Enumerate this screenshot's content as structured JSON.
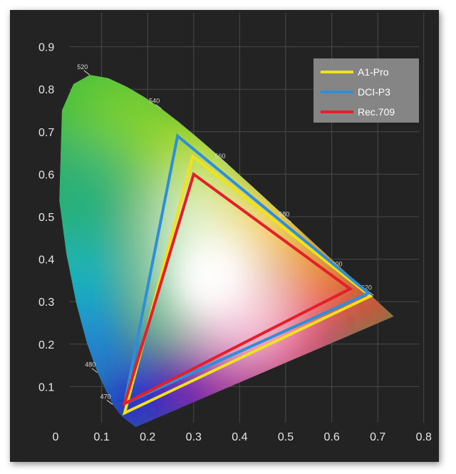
{
  "chart_data": {
    "type": "scatter",
    "title": "",
    "xlabel": "",
    "ylabel": "",
    "xlim": [
      0,
      0.8
    ],
    "ylim": [
      0,
      0.9
    ],
    "x_ticks": [
      "0",
      "0.1",
      "0.2",
      "0.3",
      "0.4",
      "0.5",
      "0.6",
      "0.7",
      "0.8"
    ],
    "y_ticks": [
      "0.1",
      "0.2",
      "0.3",
      "0.4",
      "0.5",
      "0.6",
      "0.7",
      "0.8",
      "0.9"
    ],
    "grid": true,
    "legend_position": "top-right",
    "wavelength_labels": [
      {
        "text": "470",
        "x": 0.124,
        "y": 0.058
      },
      {
        "text": "480",
        "x": 0.091,
        "y": 0.133
      },
      {
        "text": "520",
        "x": 0.074,
        "y": 0.834
      },
      {
        "text": "540",
        "x": 0.23,
        "y": 0.754
      },
      {
        "text": "560",
        "x": 0.373,
        "y": 0.624
      },
      {
        "text": "580",
        "x": 0.512,
        "y": 0.487
      },
      {
        "text": "600",
        "x": 0.627,
        "y": 0.37
      },
      {
        "text": "620",
        "x": 0.691,
        "y": 0.315
      }
    ],
    "series": [
      {
        "name": "A1-Pro",
        "color": "#f2e21b",
        "points": [
          [
            0.684,
            0.313
          ],
          [
            0.298,
            0.642
          ],
          [
            0.15,
            0.038
          ]
        ]
      },
      {
        "name": "DCI-P3",
        "color": "#2f8fd6",
        "points": [
          [
            0.68,
            0.32
          ],
          [
            0.265,
            0.69
          ],
          [
            0.15,
            0.06
          ]
        ]
      },
      {
        "name": "Rec.709",
        "color": "#e21f2b",
        "points": [
          [
            0.64,
            0.33
          ],
          [
            0.3,
            0.6
          ],
          [
            0.15,
            0.06
          ]
        ]
      }
    ]
  }
}
